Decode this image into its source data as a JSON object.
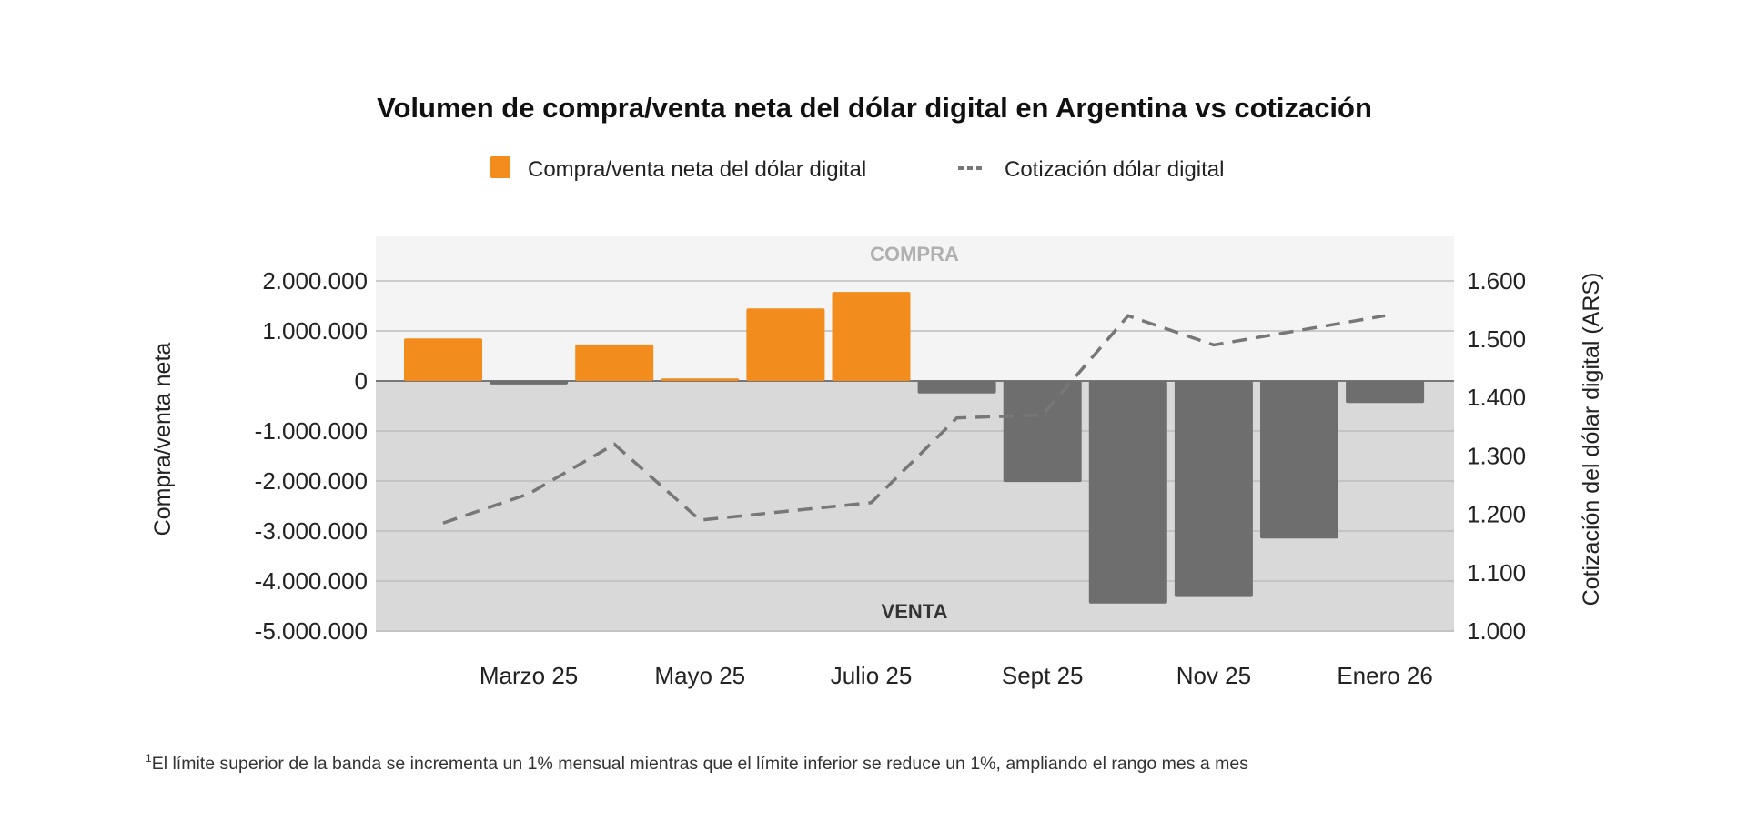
{
  "chart_data": {
    "type": "bar",
    "title": "Volumen de compra/venta neta del dólar digital en Argentina vs cotización",
    "legend": {
      "placement": "top-center",
      "items": [
        {
          "label": "Compra/venta neta del dólar digital",
          "kind": "bar",
          "color": "#F28C1C"
        },
        {
          "label": "Cotización dólar digital",
          "kind": "dashed-line",
          "color": "#777777"
        }
      ]
    },
    "categories": [
      "",
      "Marzo 25",
      "",
      "Mayo 25",
      "",
      "Julio 25",
      "",
      "Sept 25",
      "",
      "Nov 25",
      "",
      "Enero 26"
    ],
    "series": [
      {
        "name": "Compra/venta neta del dólar digital",
        "type": "bar",
        "axis": "left",
        "values": [
          850000,
          -70000,
          730000,
          50000,
          1450000,
          1780000,
          -250000,
          -2020000,
          -4450000,
          -4320000,
          -3150000,
          -440000
        ],
        "positive_color": "#F28C1C",
        "negative_color": "#6E6E6E"
      },
      {
        "name": "Cotización dólar digital",
        "type": "line",
        "style": "dashed",
        "axis": "right",
        "values": [
          1185,
          1235,
          1320,
          1190,
          1205,
          1220,
          1365,
          1370,
          1540,
          1490,
          1515,
          1540
        ],
        "color": "#777777"
      }
    ],
    "y_left": {
      "label": "Compra/venta neta",
      "range": [
        -5000000,
        2000000
      ],
      "ticks": [
        2000000,
        1000000,
        0,
        -1000000,
        -2000000,
        -3000000,
        -4000000,
        -5000000
      ],
      "tick_labels": [
        "2.000.000",
        "1.000.000",
        "0",
        "-1.000.000",
        "-2.000.000",
        "-3.000.000",
        "-4.000.000",
        "-5.000.000"
      ]
    },
    "y_right": {
      "label": "Cotización del dólar digital (ARS)",
      "range": [
        1000,
        1600
      ],
      "ticks": [
        1600,
        1500,
        1400,
        1300,
        1200,
        1100,
        1000
      ],
      "tick_labels": [
        "1.600",
        "1.500",
        "1.400",
        "1.300",
        "1.200",
        "1.100",
        "1.000"
      ]
    },
    "zones": {
      "upper_label": "COMPRA",
      "lower_label": "VENTA",
      "upper_bg": "#F4F4F4",
      "lower_bg": "#D9D9D9"
    },
    "grid": true,
    "footnote_mark": "1",
    "footnote": "El límite superior de la banda se incrementa un 1% mensual mientras que el límite inferior se reduce un 1%, ampliando el rango mes a mes"
  }
}
